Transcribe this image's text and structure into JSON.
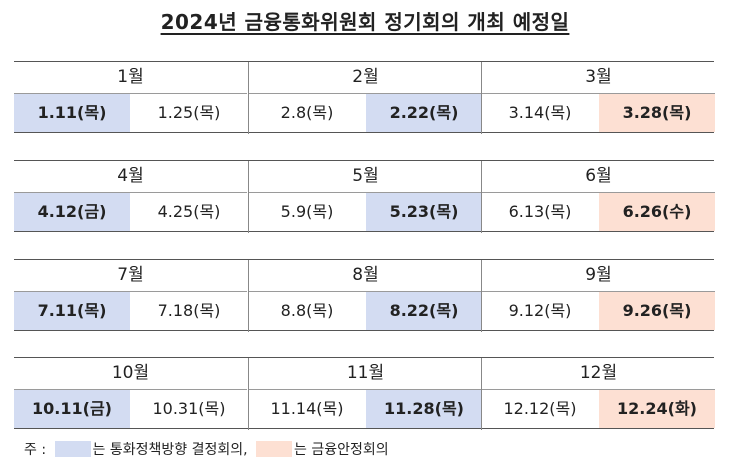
{
  "title": "2024년 금융통화위원회 정기회의 개최 예정일",
  "colors": {
    "monetary_policy": "#d3dcf2",
    "financial_stability": "#fde0d3"
  },
  "quarters": [
    {
      "months": [
        {
          "label": "1월",
          "dates": [
            {
              "text": "1.11(목)",
              "type": "monetary"
            },
            {
              "text": "1.25(목)",
              "type": "regular"
            }
          ]
        },
        {
          "label": "2월",
          "dates": [
            {
              "text": "2.8(목)",
              "type": "regular"
            },
            {
              "text": "2.22(목)",
              "type": "monetary"
            }
          ]
        },
        {
          "label": "3월",
          "dates": [
            {
              "text": "3.14(목)",
              "type": "regular"
            },
            {
              "text": "3.28(목)",
              "type": "stability"
            }
          ]
        }
      ]
    },
    {
      "months": [
        {
          "label": "4월",
          "dates": [
            {
              "text": "4.12(금)",
              "type": "monetary"
            },
            {
              "text": "4.25(목)",
              "type": "regular"
            }
          ]
        },
        {
          "label": "5월",
          "dates": [
            {
              "text": "5.9(목)",
              "type": "regular"
            },
            {
              "text": "5.23(목)",
              "type": "monetary"
            }
          ]
        },
        {
          "label": "6월",
          "dates": [
            {
              "text": "6.13(목)",
              "type": "regular"
            },
            {
              "text": "6.26(수)",
              "type": "stability"
            }
          ]
        }
      ]
    },
    {
      "months": [
        {
          "label": "7월",
          "dates": [
            {
              "text": "7.11(목)",
              "type": "monetary"
            },
            {
              "text": "7.18(목)",
              "type": "regular"
            }
          ]
        },
        {
          "label": "8월",
          "dates": [
            {
              "text": "8.8(목)",
              "type": "regular"
            },
            {
              "text": "8.22(목)",
              "type": "monetary"
            }
          ]
        },
        {
          "label": "9월",
          "dates": [
            {
              "text": "9.12(목)",
              "type": "regular"
            },
            {
              "text": "9.26(목)",
              "type": "stability"
            }
          ]
        }
      ]
    },
    {
      "months": [
        {
          "label": "10월",
          "dates": [
            {
              "text": "10.11(금)",
              "type": "monetary"
            },
            {
              "text": "10.31(목)",
              "type": "regular"
            }
          ]
        },
        {
          "label": "11월",
          "dates": [
            {
              "text": "11.14(목)",
              "type": "regular"
            },
            {
              "text": "11.28(목)",
              "type": "monetary"
            }
          ]
        },
        {
          "label": "12월",
          "dates": [
            {
              "text": "12.12(목)",
              "type": "regular"
            },
            {
              "text": "12.24(화)",
              "type": "stability"
            }
          ]
        }
      ]
    }
  ],
  "legend": {
    "prefix": "주 :",
    "monetary_text": "는 통화정책방향 결정회의,",
    "stability_text": "는 금융안정회의"
  }
}
